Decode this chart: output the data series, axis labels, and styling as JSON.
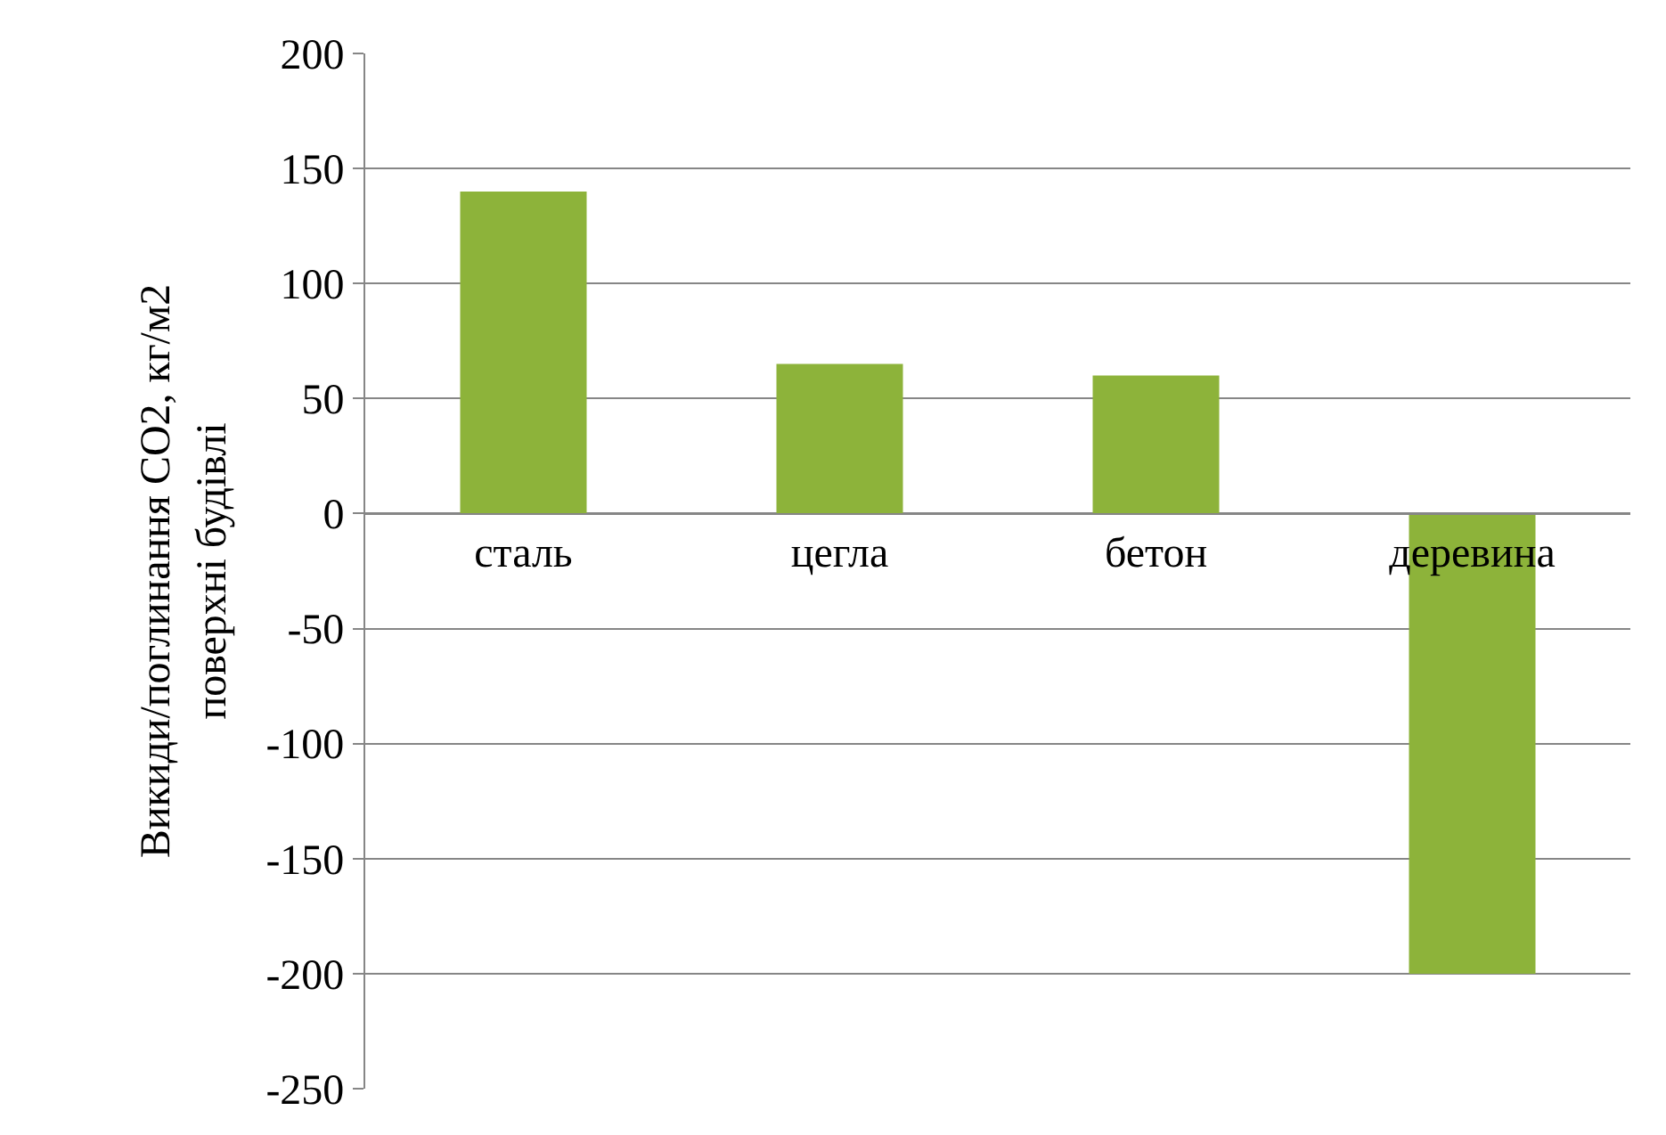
{
  "chart_data": {
    "type": "bar",
    "categories": [
      "сталь",
      "цегла",
      "бетон",
      "деревина"
    ],
    "values": [
      140,
      65,
      60,
      -200
    ],
    "color": "#8db33a",
    "ylabel": "Викиди/поглинання CO2, кг/м2\nповерхні будівлі",
    "ylim": [
      -250,
      200
    ],
    "yticks": [
      -250,
      -200,
      -150,
      -100,
      -50,
      0,
      50,
      100,
      150,
      200
    ],
    "grid": "y",
    "legend": false
  }
}
